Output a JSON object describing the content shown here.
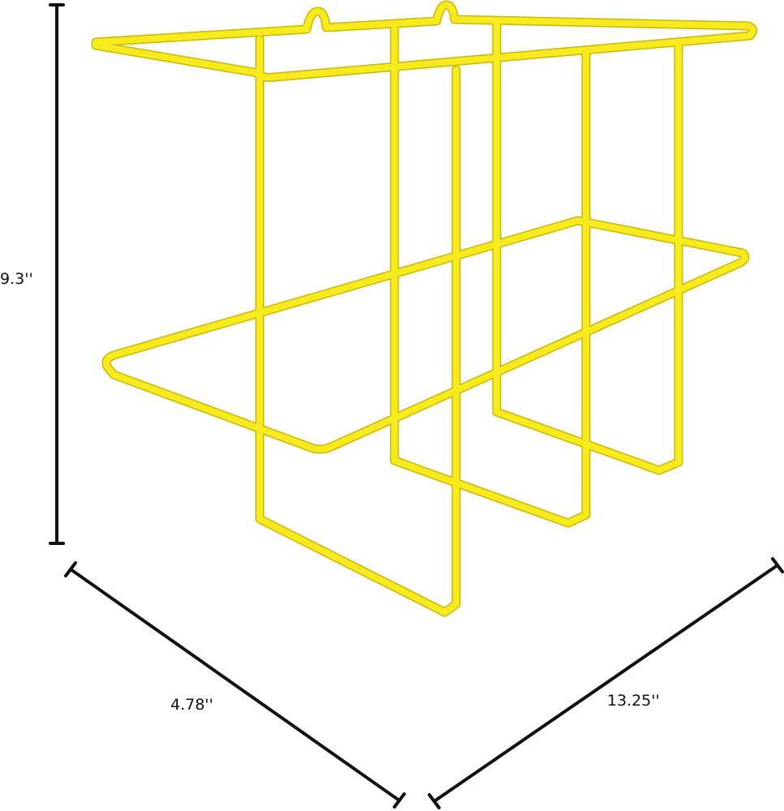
{
  "product": {
    "color": "#f7ea1f",
    "outline": "#c9b800"
  },
  "dimensions": {
    "height": "9.3''",
    "depth": "4.78''",
    "width": "13.25''"
  }
}
